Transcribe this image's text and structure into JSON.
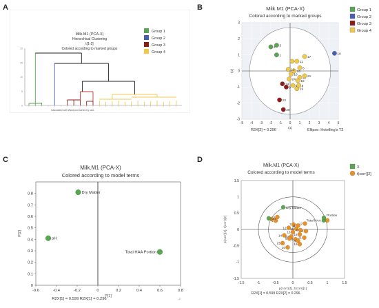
{
  "panel_letters": [
    "A",
    "B",
    "C",
    "D"
  ],
  "chart_data": [
    {
      "panel": "A",
      "type": "dendrogram",
      "title_lines": [
        "Milk.M1 (PCA-X)",
        "Hierarchical Clustering",
        "t[1-2]",
        "Colored according to marked groups"
      ],
      "legend": [
        {
          "label": "Group 1",
          "color": "#5aa552"
        },
        {
          "label": "Group 2",
          "color": "#4a5fb0"
        },
        {
          "label": "Group 3",
          "color": "#8f1b1b"
        },
        {
          "label": "Group 4",
          "color": "#f0c84a"
        }
      ],
      "yticks": [
        "20",
        "15",
        "10",
        "5",
        "0"
      ],
      "footer": "Calculated with Ward and sorted by size."
    },
    {
      "panel": "B",
      "type": "scatter",
      "title": "Milk.M1 (PCA-X)",
      "subtitle": "Colored according to marked groups",
      "xlim": [
        -5,
        5
      ],
      "ylim": [
        -3,
        3
      ],
      "xticks": [
        -5,
        -4,
        -3,
        -2,
        -1,
        0,
        1,
        2,
        3,
        4,
        5
      ],
      "yticks": [
        -3,
        -2,
        -1,
        0,
        1,
        2,
        3
      ],
      "xlabel": "t[1]",
      "ylabel": "t[2]",
      "ellipse_label": "Ellipse: Hotelling's T2",
      "footnote": "R2X[2] = 0.296",
      "legend": [
        {
          "label": "Group 1",
          "color": "#5aa552"
        },
        {
          "label": "Group 2",
          "color": "#4a5fb0"
        },
        {
          "label": "Group 3",
          "color": "#8f1b1b"
        },
        {
          "label": "Group 4",
          "color": "#f0c84a"
        }
      ],
      "points": [
        {
          "label": "4",
          "x": -2.0,
          "y": 1.5,
          "group": 0
        },
        {
          "label": "3",
          "x": -1.4,
          "y": 1.6,
          "group": 0
        },
        {
          "label": "1",
          "x": -1.4,
          "y": 1.0,
          "group": 0
        },
        {
          "label": "10",
          "x": 4.6,
          "y": 1.1,
          "group": 1
        },
        {
          "label": "14",
          "x": -0.8,
          "y": -0.8,
          "group": 2
        },
        {
          "label": "9",
          "x": -0.4,
          "y": -1.0,
          "group": 2
        },
        {
          "label": "23",
          "x": -1.1,
          "y": -1.8,
          "group": 2
        },
        {
          "label": "20",
          "x": -0.7,
          "y": -2.4,
          "group": 2
        },
        {
          "label": "17",
          "x": 1.5,
          "y": 0.9,
          "group": 3
        },
        {
          "label": "7",
          "x": 0.2,
          "y": 0.6,
          "group": 3
        },
        {
          "label": "11",
          "x": 0.7,
          "y": 0.6,
          "group": 3
        },
        {
          "label": "6",
          "x": 1.0,
          "y": 0.2,
          "group": 3
        },
        {
          "label": "15",
          "x": 0.4,
          "y": 0.0,
          "group": 3
        },
        {
          "label": "12",
          "x": -0.2,
          "y": 0.1,
          "group": 3
        },
        {
          "label": "16",
          "x": 0.1,
          "y": -0.2,
          "group": 3
        },
        {
          "label": "22",
          "x": 1.0,
          "y": -0.4,
          "group": 3
        },
        {
          "label": "18",
          "x": 0.8,
          "y": -0.6,
          "group": 3
        },
        {
          "label": "24",
          "x": -0.1,
          "y": -0.5,
          "group": 3
        },
        {
          "label": "19",
          "x": 0.7,
          "y": -1.1,
          "group": 3
        },
        {
          "label": "5",
          "x": 0.3,
          "y": -0.9,
          "group": 3
        },
        {
          "label": "8",
          "x": 0.9,
          "y": -0.9,
          "group": 3
        },
        {
          "label": "21",
          "x": 1.5,
          "y": -0.3,
          "group": 3
        }
      ]
    },
    {
      "panel": "C",
      "type": "scatter",
      "title": "Milk.M1 (PCA-X)",
      "subtitle": "Colored according to model terms",
      "xlim": [
        -0.6,
        0.8
      ],
      "ylim": [
        0,
        0.9
      ],
      "xticks": [
        -0.6,
        -0.4,
        -0.2,
        0,
        0.2,
        0.4,
        0.6,
        0.8
      ],
      "yticks": [
        0,
        0.1,
        0.2,
        0.3,
        0.4,
        0.5,
        0.6,
        0.7,
        0.8
      ],
      "xlabel": "P[1]",
      "ylabel": "P[2]",
      "footnote": "R2X[1] = 0.599       R2X[1] = 0.296",
      "page_num": "2",
      "points": [
        {
          "label": "Dry Matter",
          "x": -0.19,
          "y": 0.81,
          "color": "#5aa552"
        },
        {
          "label": "pH",
          "x": -0.48,
          "y": 0.41,
          "color": "#5aa552"
        },
        {
          "label": "Total HAA  Portion",
          "x": 0.6,
          "y": 0.29,
          "color": "#5aa552"
        }
      ]
    },
    {
      "panel": "D",
      "type": "scatter",
      "title": "Milk.M1 (PCA-X)",
      "subtitle": "Colored according to model terms",
      "xlim": [
        -1.5,
        1.5
      ],
      "ylim": [
        -1.5,
        1.5
      ],
      "xticks": [
        -1.5,
        -1,
        -0.5,
        0,
        0.5,
        1,
        1.5
      ],
      "yticks": [
        -1.5,
        -1,
        -0.5,
        0,
        0.5,
        1,
        1.5
      ],
      "xlabel": "p(corr)[1], t(corr)[1]",
      "ylabel": "p(corr)[2], t(corr)[2]",
      "footnote": "R2X[1] = 0.599       R2X[2] = 0.296",
      "legend": [
        {
          "label": "X",
          "color": "#5aa552"
        },
        {
          "label": "t(corr)[2]",
          "color": "#e8912a"
        }
      ],
      "points_x": [
        {
          "label": "Dry Matter",
          "x": -0.28,
          "y": 0.68
        },
        {
          "label": "pH",
          "x": -0.7,
          "y": 0.34
        },
        {
          "label": "Total HAA",
          "x": 0.9,
          "y": 0.28
        },
        {
          "label": "Portion",
          "x": 0.9,
          "y": 0.36
        }
      ],
      "points_t": [
        {
          "label": "10",
          "x": 1.0,
          "y": 0.28
        },
        {
          "label": "3",
          "x": -0.45,
          "y": 0.38
        },
        {
          "label": "1",
          "x": -0.5,
          "y": 0.27
        },
        {
          "label": "4",
          "x": -0.62,
          "y": 0.32
        },
        {
          "label": "17",
          "x": 0.35,
          "y": 0.18
        },
        {
          "label": "7",
          "x": 0.02,
          "y": 0.15
        },
        {
          "label": "11",
          "x": 0.15,
          "y": 0.12
        },
        {
          "label": "12",
          "x": -0.12,
          "y": 0.05
        },
        {
          "label": "15",
          "x": 0.1,
          "y": 0.02
        },
        {
          "label": "22",
          "x": 0.38,
          "y": -0.05
        },
        {
          "label": "6",
          "x": 0.22,
          "y": -0.02
        },
        {
          "label": "16",
          "x": 0.0,
          "y": -0.08
        },
        {
          "label": "18",
          "x": 0.2,
          "y": -0.15
        },
        {
          "label": "14",
          "x": -0.25,
          "y": -0.18
        },
        {
          "label": "21",
          "x": 0.33,
          "y": -0.25
        },
        {
          "label": "24",
          "x": -0.05,
          "y": -0.22
        },
        {
          "label": "5",
          "x": 0.08,
          "y": -0.3
        },
        {
          "label": "9",
          "x": -0.1,
          "y": -0.28
        },
        {
          "label": "23",
          "x": -0.3,
          "y": -0.42
        },
        {
          "label": "19",
          "x": 0.2,
          "y": -0.45
        },
        {
          "label": "8",
          "x": 0.15,
          "y": -0.35
        },
        {
          "label": "20",
          "x": -0.15,
          "y": -0.55
        }
      ]
    }
  ]
}
